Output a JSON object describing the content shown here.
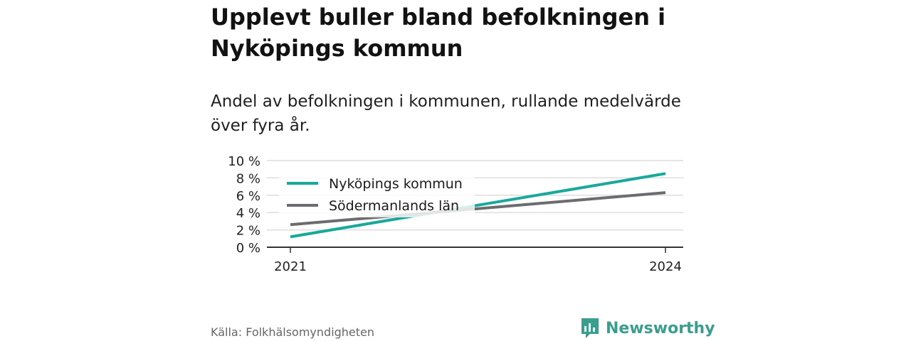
{
  "title": "Upplevt buller bland befolkningen i Nyköpings kommun",
  "subtitle": "Andel av befolkningen i kommunen, rullande medelvärde över fyra år.",
  "source": "Källa: Folkhälsomyndigheten",
  "brand": "Newsworthy",
  "colors": {
    "series1": "#1aa89b",
    "series2": "#6b6b70",
    "grid": "#dddddd",
    "axis": "#333333",
    "brand": "#3a9e8f"
  },
  "chart_data": {
    "type": "line",
    "x": [
      2021,
      2024
    ],
    "x_tick_labels": [
      "2021",
      "2024"
    ],
    "ylim": [
      0,
      10
    ],
    "y_ticks": [
      0,
      2,
      4,
      6,
      8,
      10
    ],
    "y_tick_labels": [
      "0 %",
      "2 %",
      "4 %",
      "6 %",
      "8 %",
      "10 %"
    ],
    "grid": true,
    "legend_position": "top-left",
    "series": [
      {
        "name": "Nyköpings kommun",
        "values": [
          1.2,
          8.5
        ]
      },
      {
        "name": "Södermanlands län",
        "values": [
          2.6,
          6.3
        ]
      }
    ]
  }
}
